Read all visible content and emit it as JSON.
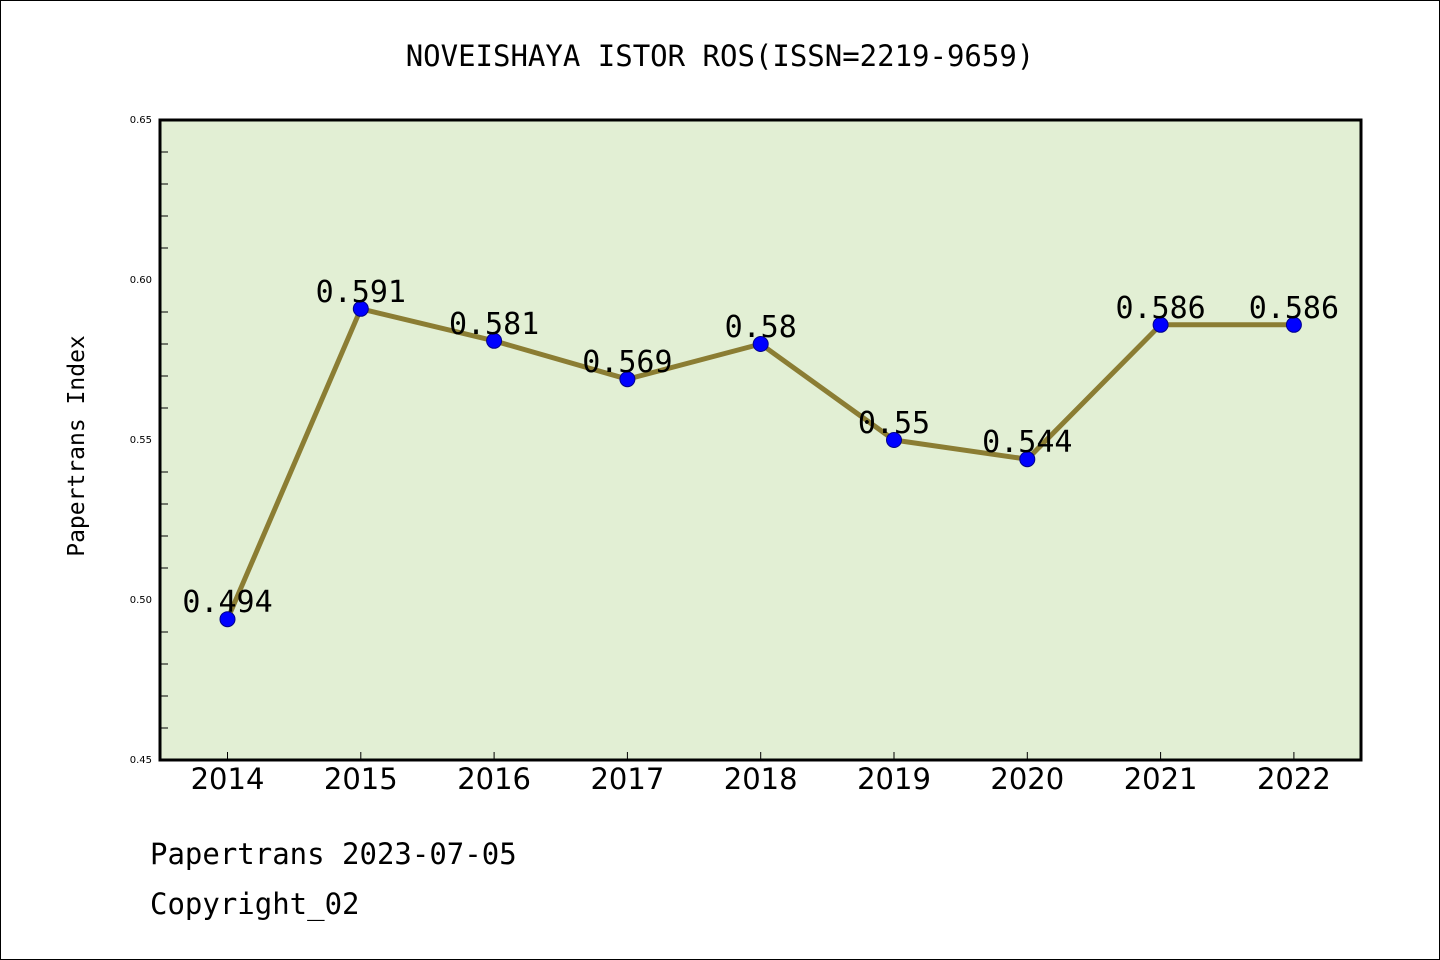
{
  "chart_data": {
    "type": "line",
    "title": "NOVEISHAYA ISTOR ROS(ISSN=2219-9659)",
    "xlabel": "",
    "ylabel": "Papertrans Index",
    "categories": [
      "2014",
      "2015",
      "2016",
      "2017",
      "2018",
      "2019",
      "2020",
      "2021",
      "2022"
    ],
    "values": [
      0.494,
      0.591,
      0.581,
      0.569,
      0.58,
      0.55,
      0.544,
      0.586,
      0.586
    ],
    "data_labels": [
      "0.494",
      "0.591",
      "0.581",
      "0.569",
      "0.58",
      "0.55",
      "0.544",
      "0.586",
      "0.586"
    ],
    "ylim": [
      0.45,
      0.65
    ],
    "yticks": [
      0.45,
      0.5,
      0.55,
      0.6,
      0.65
    ],
    "ytick_labels": [
      "0.45",
      "0.50",
      "0.55",
      "0.60",
      "0.65"
    ],
    "grid": false,
    "legend": "none"
  },
  "footer": {
    "line1": "Papertrans 2023-07-05",
    "line2": "Copyright_02"
  },
  "colors": {
    "plot_background": "#e2efd4",
    "line": "#8b7d33",
    "marker": "#0000ff",
    "marker_edge": "#00008b"
  }
}
